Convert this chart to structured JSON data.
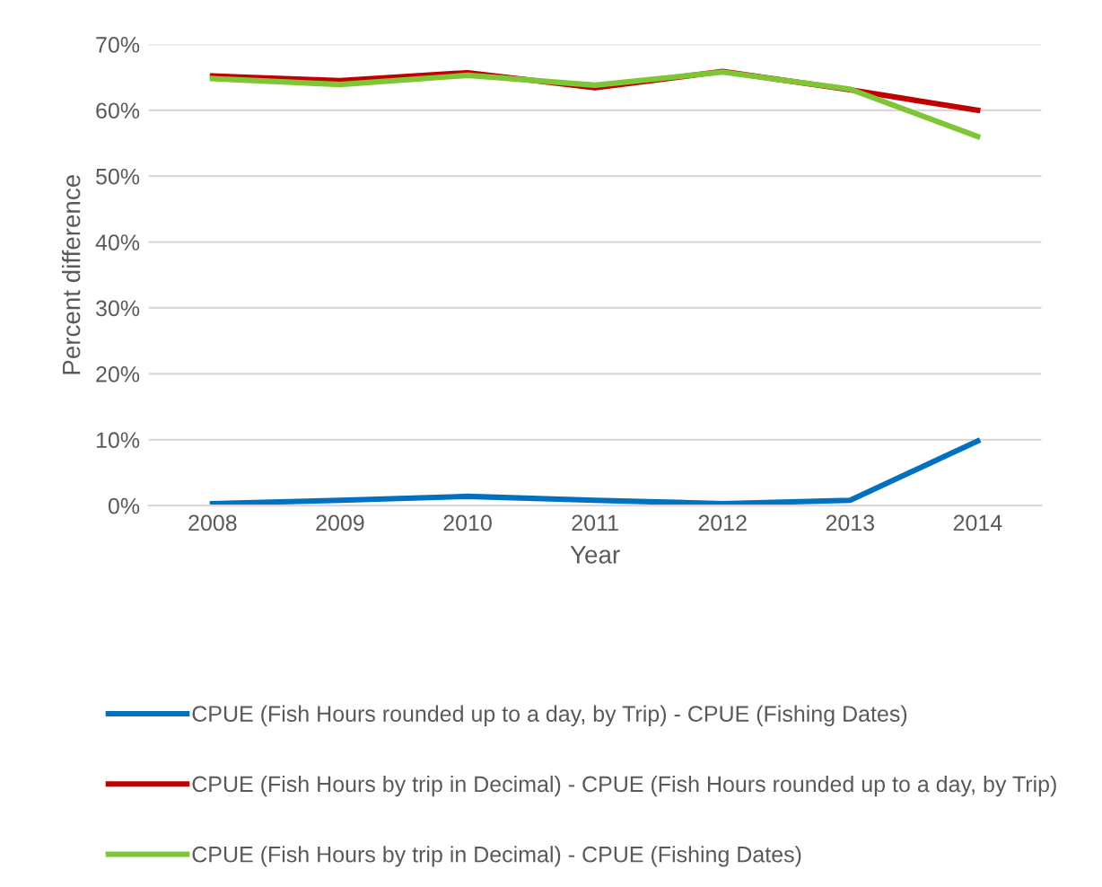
{
  "chart_data": {
    "type": "line",
    "xlabel": "Year",
    "ylabel": "Percent difference",
    "categories": [
      "2008",
      "2009",
      "2010",
      "2011",
      "2012",
      "2013",
      "2014"
    ],
    "series": [
      {
        "name": "CPUE (Fish Hours rounded up to a day, by Trip) - CPUE (Fishing Dates)",
        "color": "#0070c0",
        "values": [
          0.3,
          0.8,
          1.4,
          0.8,
          0.3,
          0.8,
          9.8
        ]
      },
      {
        "name": "CPUE (Fish Hours by trip in Decimal) - CPUE (Fish Hours rounded up to a day, by Trip)",
        "color": "#c00000",
        "values": [
          65.2,
          64.5,
          65.7,
          63.4,
          65.9,
          63.1,
          60.0
        ]
      },
      {
        "name": "CPUE (Fish Hours by trip in Decimal) - CPUE (Fishing Dates)",
        "color": "#7ec636",
        "values": [
          64.8,
          63.9,
          65.3,
          63.8,
          65.8,
          63.2,
          56.0
        ]
      }
    ],
    "ylim": [
      0,
      70
    ],
    "yticks": [
      {
        "value": 0,
        "label": "0%"
      },
      {
        "value": 10,
        "label": "10%"
      },
      {
        "value": 20,
        "label": "20%"
      },
      {
        "value": 30,
        "label": "30%"
      },
      {
        "value": 40,
        "label": "40%"
      },
      {
        "value": 50,
        "label": "50%"
      },
      {
        "value": 60,
        "label": "60%"
      },
      {
        "value": 70,
        "label": "70%"
      }
    ],
    "grid": "y",
    "legend": "bottom",
    "marker": "none",
    "line_style": "solid"
  }
}
